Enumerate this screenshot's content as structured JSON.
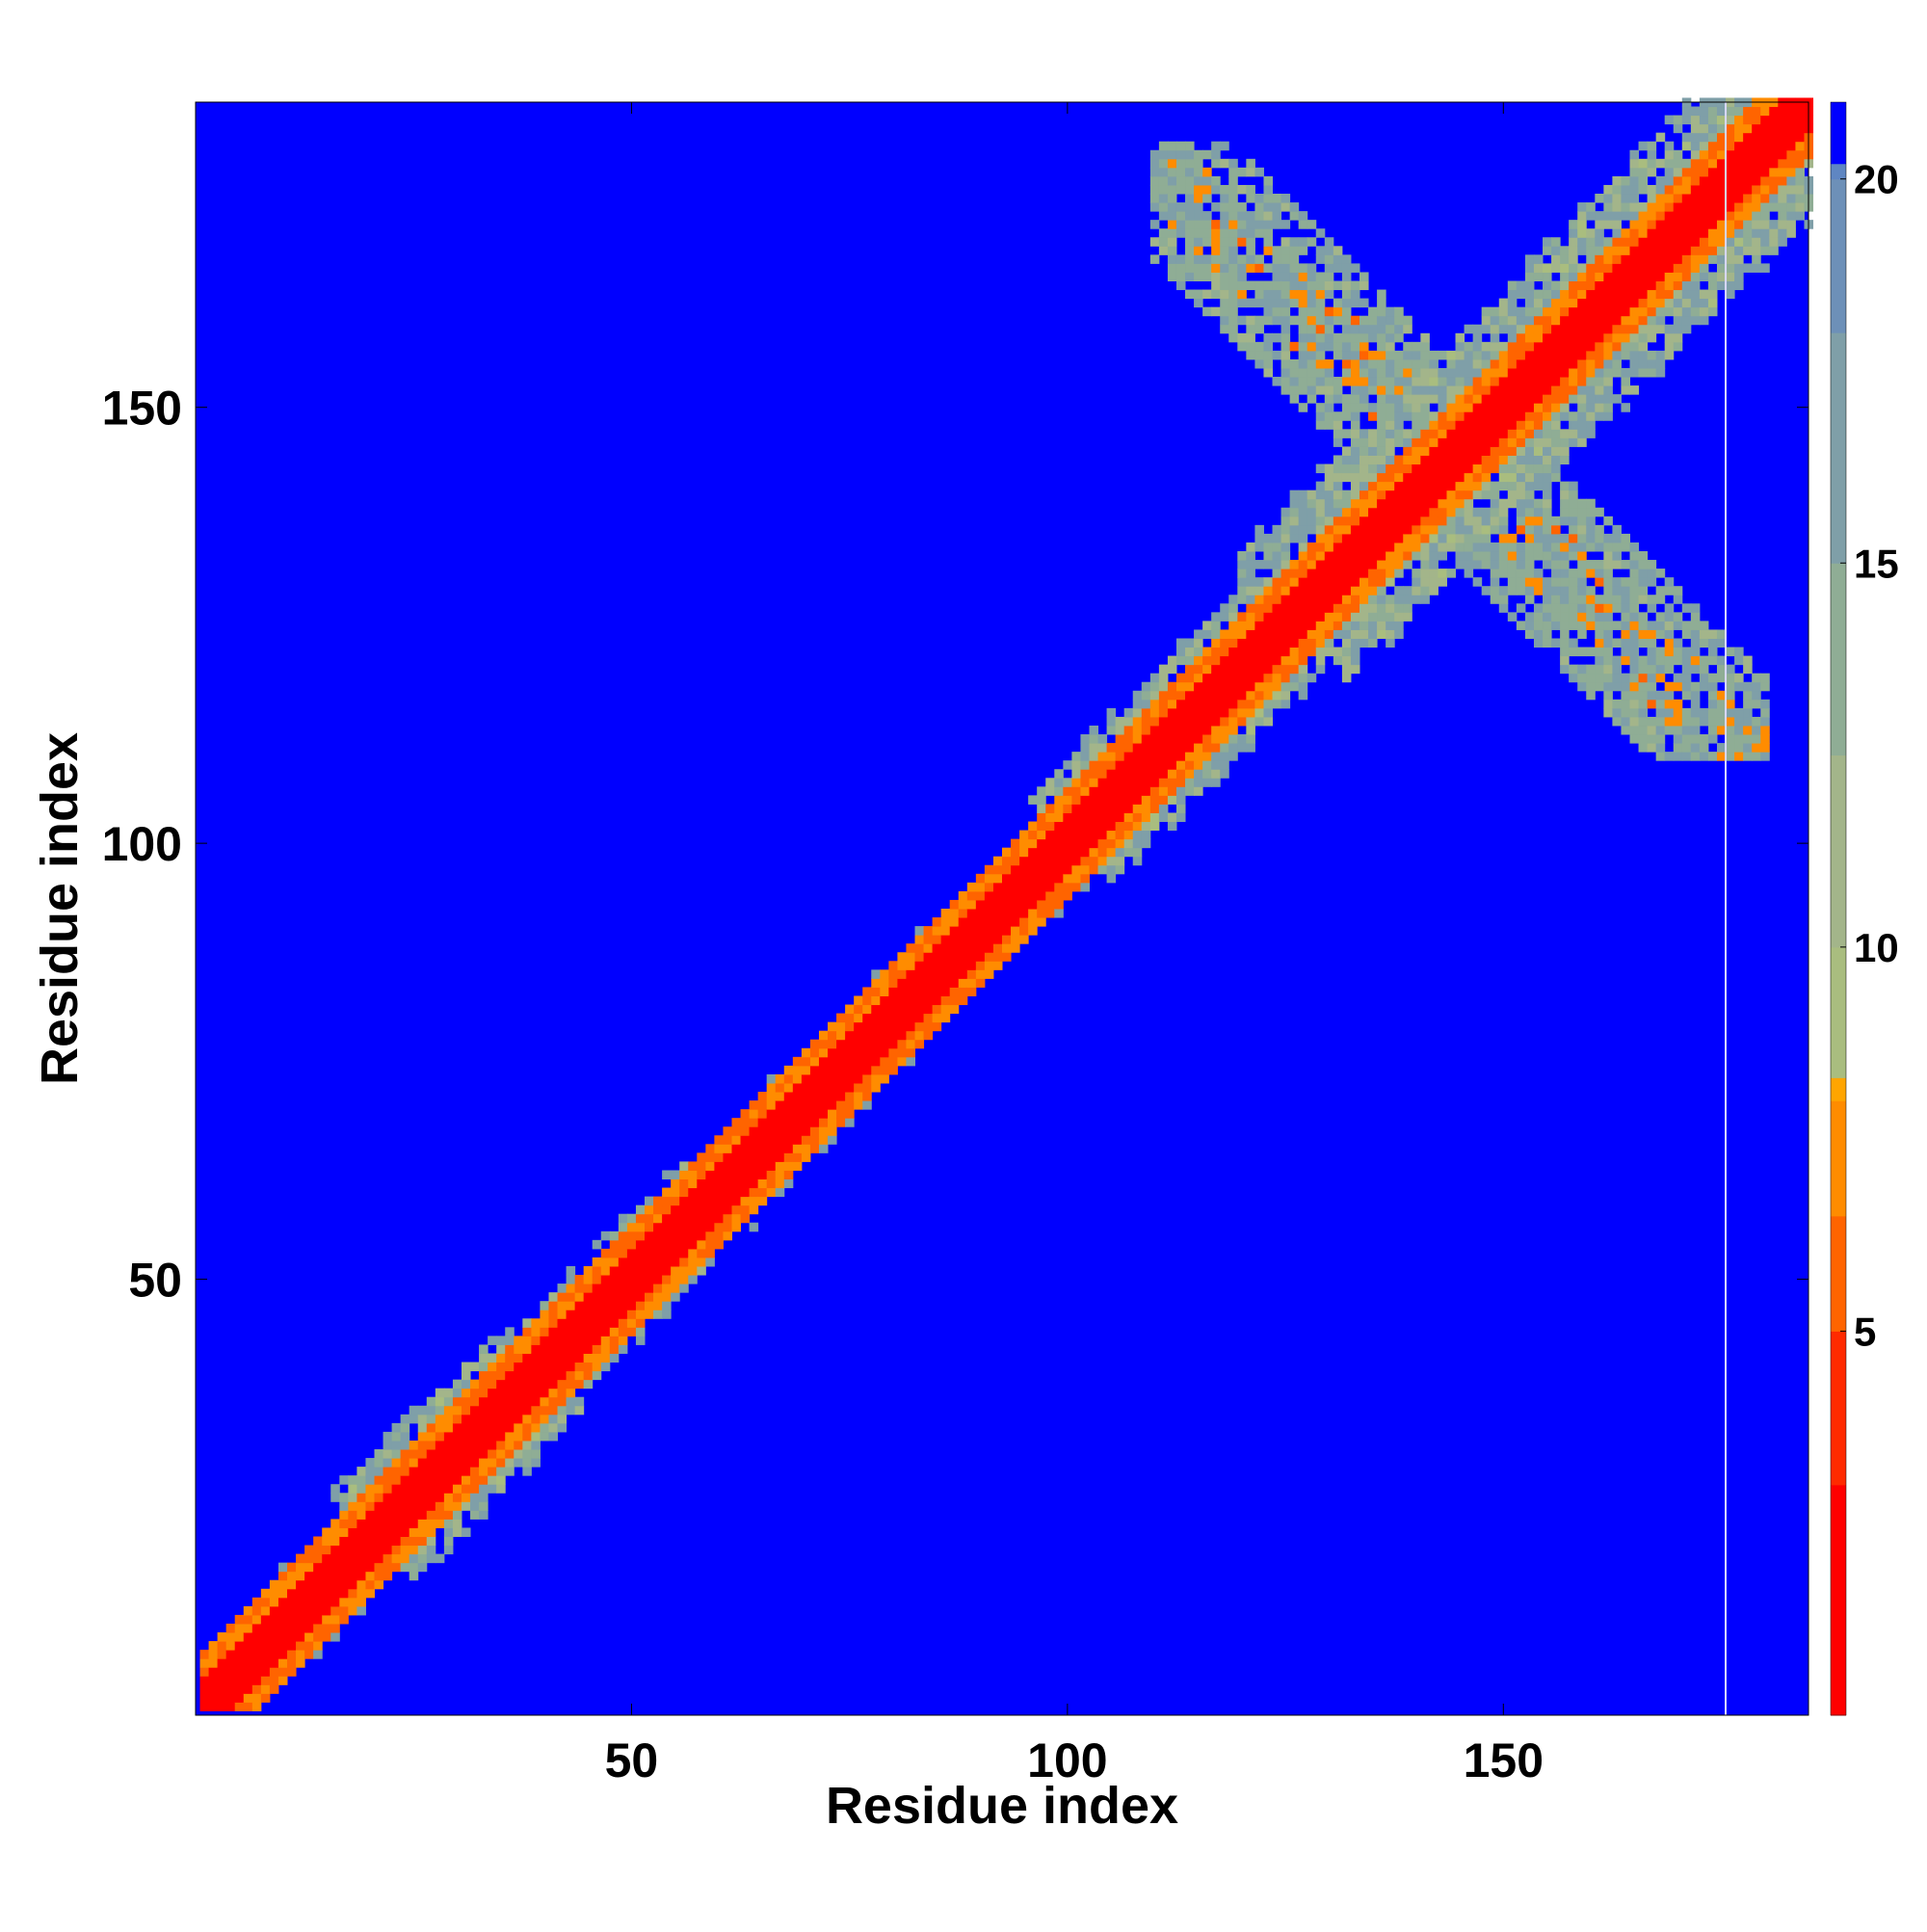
{
  "chart_data": {
    "type": "heatmap",
    "title": "",
    "xlabel": "Residue index",
    "ylabel": "Residue index",
    "xlim": [
      1,
      185
    ],
    "ylim": [
      1,
      185
    ],
    "x_ticks": [
      50,
      100,
      150
    ],
    "y_ticks": [
      50,
      100,
      150
    ],
    "colorbar": {
      "range": [
        0,
        21
      ],
      "ticks": [
        5,
        10,
        15,
        20
      ],
      "stops": [
        {
          "value": 0,
          "color": "#ff0000"
        },
        {
          "value": 3,
          "color": "#ff2a00"
        },
        {
          "value": 5,
          "color": "#ff6400"
        },
        {
          "value": 6.5,
          "color": "#ff8c00"
        },
        {
          "value": 8,
          "color": "#ffa500"
        },
        {
          "value": 8.3,
          "color": "#a9bd7f"
        },
        {
          "value": 10,
          "color": "#a3b58a"
        },
        {
          "value": 12.5,
          "color": "#8fad95"
        },
        {
          "value": 15,
          "color": "#7f9fa8"
        },
        {
          "value": 18,
          "color": "#6d90b8"
        },
        {
          "value": 20,
          "color": "#5f86c2"
        },
        {
          "value": 20.2,
          "color": "#0000ff"
        },
        {
          "value": 21,
          "color": "#0000ff"
        }
      ],
      "above_max_color": "#0000ff"
    },
    "description_of_values": "distance map (Å) between residue pairs; diagonal ~0, off-diagonal mostly >20",
    "features": {
      "diagonal_core": {
        "width": 3,
        "value": 1
      },
      "diagonal_mid": {
        "width": 6,
        "value": 7
      },
      "diagonal_halo_segments": [
        {
          "from": 1,
          "to": 20,
          "halo": 6
        },
        {
          "from": 20,
          "to": 40,
          "halo": 9
        },
        {
          "from": 40,
          "to": 60,
          "halo": 7
        },
        {
          "from": 60,
          "to": 100,
          "halo": 6
        },
        {
          "from": 100,
          "to": 125,
          "halo": 9
        },
        {
          "from": 125,
          "to": 185,
          "halo": 13
        }
      ],
      "off_diagonal_contact_region": {
        "x_range": [
          110,
          180
        ],
        "y_range": [
          110,
          180
        ],
        "anti_diagonal_center": 288,
        "anti_diagonal_halfwidth": 11,
        "core_halfwidth": 5,
        "core_values": [
          6,
          8
        ],
        "halo_values": [
          12,
          17
        ]
      },
      "gap_column": 176
    }
  }
}
